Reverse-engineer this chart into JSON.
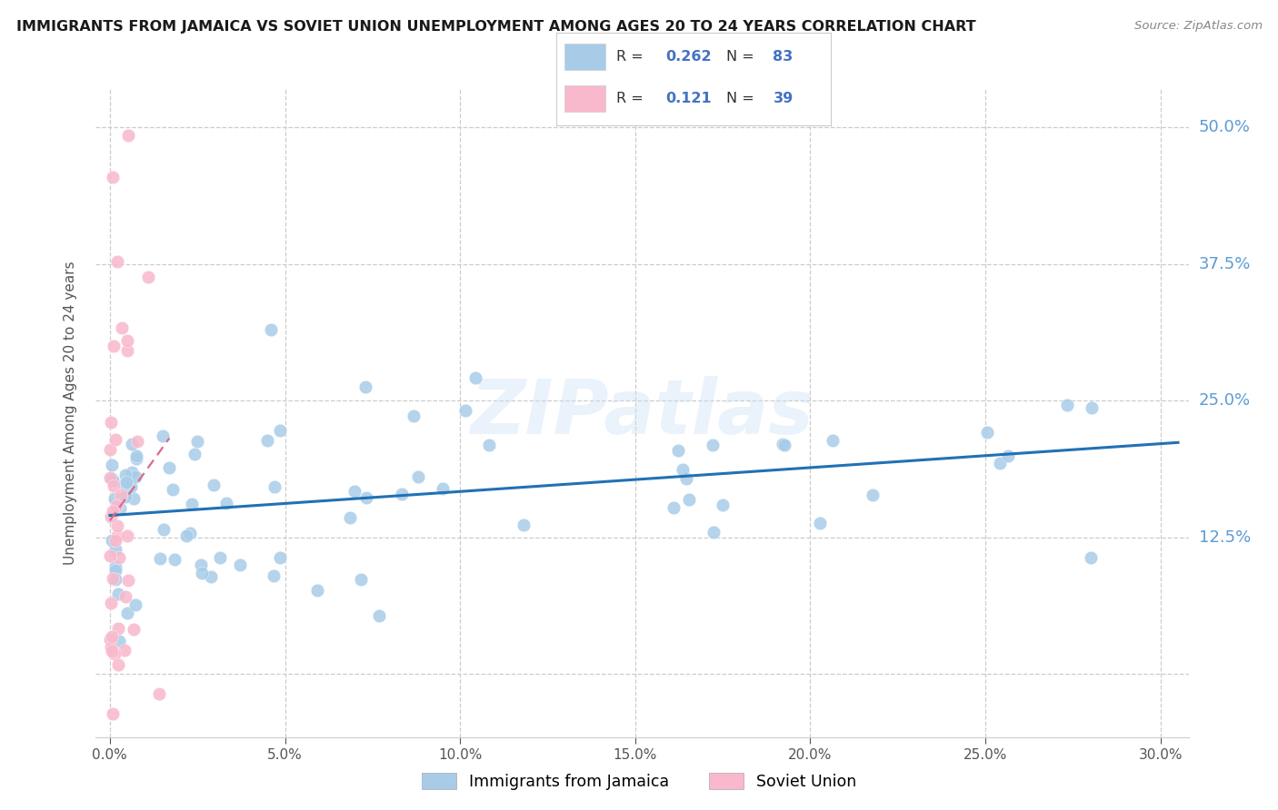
{
  "title": "IMMIGRANTS FROM JAMAICA VS SOVIET UNION UNEMPLOYMENT AMONG AGES 20 TO 24 YEARS CORRELATION CHART",
  "source": "Source: ZipAtlas.com",
  "ylabel": "Unemployment Among Ages 20 to 24 years",
  "xtick_positions": [
    0.0,
    0.05,
    0.1,
    0.15,
    0.2,
    0.25,
    0.3
  ],
  "ytick_positions": [
    0.0,
    0.125,
    0.25,
    0.375,
    0.5
  ],
  "xlim": [
    -0.004,
    0.308
  ],
  "ylim": [
    -0.058,
    0.535
  ],
  "jamaica_color": "#a8cce8",
  "soviet_color": "#f9b8cc",
  "jamaica_R": 0.262,
  "jamaica_N": 83,
  "soviet_R": 0.121,
  "soviet_N": 39,
  "background_color": "#ffffff",
  "grid_color": "#cccccc",
  "watermark": "ZIPatlas",
  "legend_label_jamaica": "Immigrants from Jamaica",
  "legend_label_soviet": "Soviet Union",
  "blue_trend_color": "#2171b5",
  "pink_trend_color": "#d96b8a",
  "right_axis_color": "#5b9bd5",
  "title_color": "#1a1a1a",
  "source_color": "#888888",
  "legend_text_dark": "#333333",
  "legend_value_color": "#4472c4"
}
